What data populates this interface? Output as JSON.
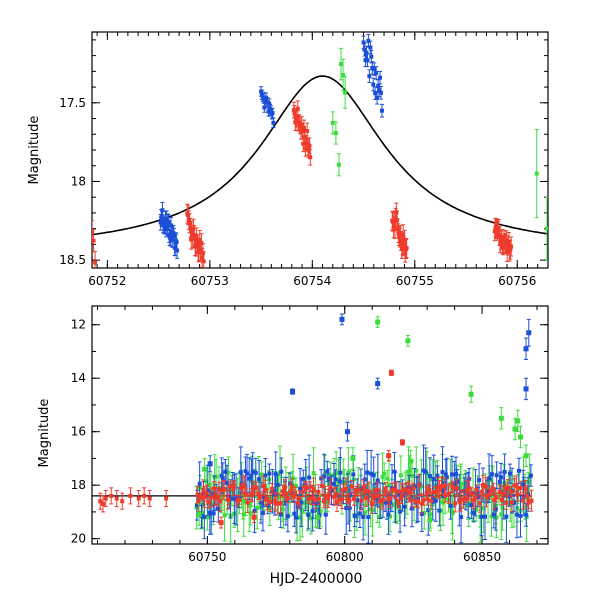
{
  "chart_data": [
    {
      "type": "scatter",
      "xlabel": "",
      "ylabel": "Magnitude",
      "xlim": [
        60751.85,
        60756.3
      ],
      "ylim": [
        18.55,
        17.05
      ],
      "y_inverted": true,
      "x_ticks": [
        "60752",
        "60753",
        "60754",
        "60755",
        "60756"
      ],
      "x_tick_values": [
        60752,
        60753,
        60754,
        60755,
        60756
      ],
      "y_ticks": [
        "17.5",
        "18",
        "18.5"
      ],
      "y_tick_values": [
        17.5,
        18.0,
        18.5
      ],
      "model_curve": {
        "type": "lorentzian",
        "peak_x": 60754.1,
        "peak_mag": 17.33,
        "base_mag": 18.45,
        "width": 0.75
      },
      "colors": {
        "blue": "#1a4fd6",
        "red": "#ee3b2b",
        "green": "#3ddc3d",
        "black": "#000000"
      },
      "clusters": [
        {
          "color": "red",
          "x0": 60751.85,
          "x1": 60751.88,
          "ymin": 18.3,
          "ymax": 18.5,
          "n": 3,
          "err": 0.07
        },
        {
          "color": "blue",
          "x0": 60752.52,
          "x1": 60752.68,
          "ymin": 18.2,
          "ymax": 18.4,
          "n": 28,
          "err": 0.05
        },
        {
          "color": "red",
          "x0": 60752.78,
          "x1": 60752.94,
          "ymin": 18.25,
          "ymax": 18.48,
          "n": 22,
          "err": 0.06
        },
        {
          "color": "blue",
          "x0": 60753.5,
          "x1": 60753.62,
          "ymin": 17.45,
          "ymax": 17.6,
          "n": 16,
          "err": 0.03
        },
        {
          "color": "red",
          "x0": 60753.82,
          "x1": 60753.98,
          "ymin": 17.55,
          "ymax": 17.8,
          "n": 22,
          "err": 0.05
        },
        {
          "color": "green",
          "x0": 60754.2,
          "x1": 60754.26,
          "ymin": 17.6,
          "ymax": 17.85,
          "n": 3,
          "err": 0.07
        },
        {
          "color": "green",
          "x0": 60754.28,
          "x1": 60754.32,
          "ymin": 17.15,
          "ymax": 17.5,
          "n": 3,
          "err": 0.1
        },
        {
          "color": "blue",
          "x0": 60754.5,
          "x1": 60754.68,
          "ymin": 17.1,
          "ymax": 17.5,
          "n": 20,
          "err": 0.04
        },
        {
          "color": "red",
          "x0": 60754.78,
          "x1": 60754.92,
          "ymin": 18.2,
          "ymax": 18.45,
          "n": 22,
          "err": 0.06
        },
        {
          "color": "red",
          "x0": 60755.78,
          "x1": 60755.94,
          "ymin": 18.3,
          "ymax": 18.45,
          "n": 22,
          "err": 0.06
        },
        {
          "color": "green",
          "x0": 60756.18,
          "x1": 60756.2,
          "ymin": 17.95,
          "ymax": 17.95,
          "n": 1,
          "err": 0.28
        },
        {
          "color": "green",
          "x0": 60756.28,
          "x1": 60756.3,
          "ymin": 18.3,
          "ymax": 18.3,
          "n": 1,
          "err": 0.2
        }
      ]
    },
    {
      "type": "scatter",
      "xlabel": "HJD-2400000",
      "ylabel": "Magnitude",
      "xlim": [
        60708,
        60874
      ],
      "ylim": [
        20.2,
        11.3
      ],
      "y_inverted": true,
      "x_ticks": [
        "60750",
        "60800",
        "60850"
      ],
      "x_tick_values": [
        60750,
        60800,
        60850
      ],
      "y_ticks": [
        "12",
        "14",
        "16",
        "18",
        "20"
      ],
      "y_tick_values": [
        12,
        14,
        16,
        18,
        20
      ],
      "reference_line": {
        "y": 18.4,
        "x0": 60708,
        "x1": 60868
      },
      "colors": {
        "blue": "#1a4fd6",
        "red": "#ee3b2b",
        "green": "#3ddc3d"
      },
      "band": {
        "x0": 60746,
        "x1": 60868,
        "center": 18.35,
        "points_per_color": 170
      },
      "early_points": [
        {
          "color": "red",
          "x": 60711,
          "y": 18.6
        },
        {
          "color": "red",
          "x": 60712,
          "y": 18.7
        },
        {
          "color": "red",
          "x": 60713,
          "y": 18.5
        },
        {
          "color": "red",
          "x": 60715,
          "y": 18.4
        },
        {
          "color": "red",
          "x": 60717,
          "y": 18.5
        },
        {
          "color": "red",
          "x": 60719,
          "y": 18.6
        },
        {
          "color": "red",
          "x": 60722,
          "y": 18.4
        },
        {
          "color": "red",
          "x": 60725,
          "y": 18.5
        },
        {
          "color": "red",
          "x": 60727,
          "y": 18.4
        },
        {
          "color": "red",
          "x": 60729,
          "y": 18.5
        },
        {
          "color": "red",
          "x": 60735,
          "y": 18.5
        }
      ],
      "outliers": [
        {
          "color": "blue",
          "x": 60799,
          "y": 11.8,
          "err": 0.2
        },
        {
          "color": "blue",
          "x": 60781,
          "y": 14.5,
          "err": 0.1
        },
        {
          "color": "blue",
          "x": 60812,
          "y": 14.2,
          "err": 0.2
        },
        {
          "color": "blue",
          "x": 60801,
          "y": 16.0,
          "err": 0.35
        },
        {
          "color": "blue",
          "x": 60866,
          "y": 12.9,
          "err": 0.4
        },
        {
          "color": "blue",
          "x": 60867,
          "y": 12.3,
          "err": 0.5
        },
        {
          "color": "blue",
          "x": 60866,
          "y": 14.4,
          "err": 0.4
        },
        {
          "color": "blue",
          "x": 60751,
          "y": 17.2,
          "err": 0.3
        },
        {
          "color": "green",
          "x": 60812,
          "y": 11.9,
          "err": 0.2
        },
        {
          "color": "green",
          "x": 60823,
          "y": 12.6,
          "err": 0.2
        },
        {
          "color": "green",
          "x": 60846,
          "y": 14.6,
          "err": 0.3
        },
        {
          "color": "green",
          "x": 60857,
          "y": 15.5,
          "err": 0.4
        },
        {
          "color": "green",
          "x": 60862,
          "y": 15.9,
          "err": 0.4
        },
        {
          "color": "green",
          "x": 60863,
          "y": 15.6,
          "err": 0.4
        },
        {
          "color": "green",
          "x": 60864,
          "y": 16.2,
          "err": 0.4
        },
        {
          "color": "green",
          "x": 60866,
          "y": 16.9,
          "err": 0.4
        },
        {
          "color": "green",
          "x": 60803,
          "y": 17.0,
          "err": 0.4
        },
        {
          "color": "green",
          "x": 60824,
          "y": 17.1,
          "err": 0.4
        },
        {
          "color": "green",
          "x": 60749,
          "y": 17.4,
          "err": 0.4
        },
        {
          "color": "green",
          "x": 60747,
          "y": 19.1,
          "err": 0.4
        },
        {
          "color": "green",
          "x": 60790,
          "y": 19.2,
          "err": 0.4
        },
        {
          "color": "green",
          "x": 60831,
          "y": 19.3,
          "err": 0.4
        },
        {
          "color": "red",
          "x": 60817,
          "y": 13.8,
          "err": 0.1
        },
        {
          "color": "red",
          "x": 60821,
          "y": 16.4,
          "err": 0.1
        },
        {
          "color": "red",
          "x": 60755,
          "y": 19.4,
          "err": 0.2
        },
        {
          "color": "red",
          "x": 60767,
          "y": 19.2,
          "err": 0.2
        },
        {
          "color": "red",
          "x": 60816,
          "y": 16.9,
          "err": 0.2
        }
      ]
    }
  ]
}
